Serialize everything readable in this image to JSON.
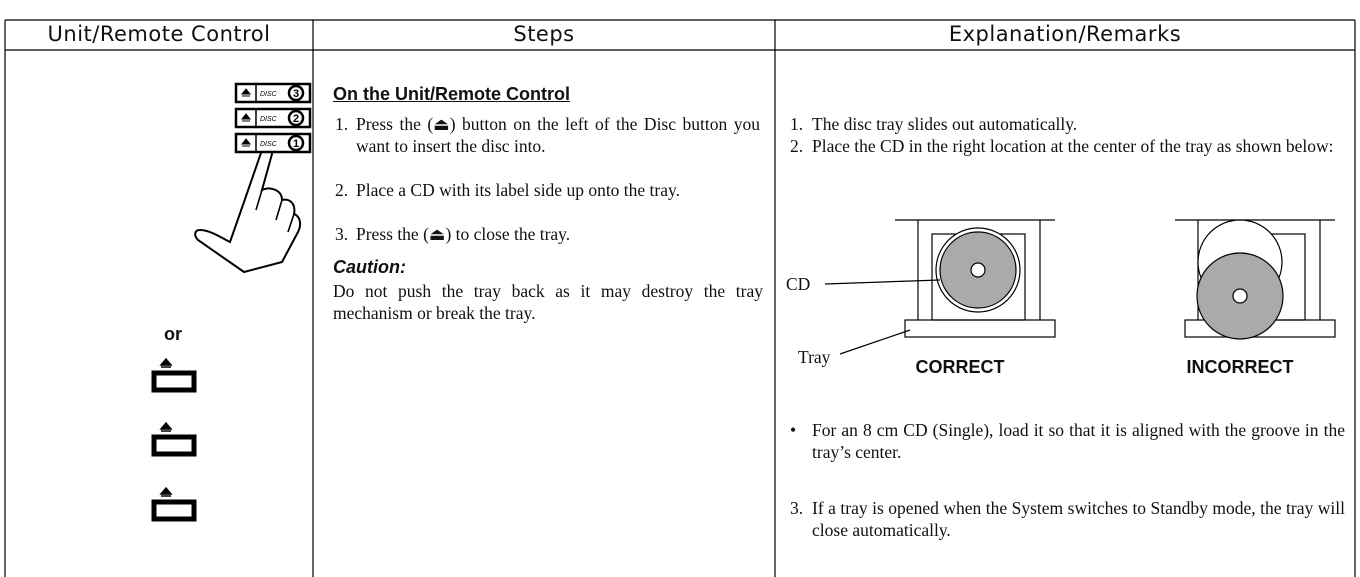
{
  "header": {
    "columns": [
      "Unit/Remote Control",
      "Steps",
      "Explanation/Remarks"
    ]
  },
  "unit_column": {
    "buttons": [
      {
        "label": "DISC",
        "number": "3"
      },
      {
        "label": "DISC",
        "number": "2"
      },
      {
        "label": "DISC",
        "number": "1"
      }
    ],
    "or_text": "or"
  },
  "steps": {
    "heading": "On the Unit/Remote Control",
    "items": [
      {
        "number": "1.",
        "text": "Press the (⏏) button on the left of the Disc button you want to insert the disc into."
      },
      {
        "number": "2.",
        "text": "Place a CD with its label side up onto the tray."
      },
      {
        "number": "3.",
        "text": "Press the (⏏) to close the tray."
      }
    ],
    "caution": {
      "heading": "Caution:",
      "text": "Do not push the tray back as it may destroy the tray mechanism or break the tray."
    }
  },
  "remarks": {
    "items": [
      {
        "number": "1.",
        "text": "The disc tray slides out automatically."
      },
      {
        "number": "2.",
        "text": "Place the CD in the right location at the center of the tray as shown below:"
      }
    ],
    "diagram": {
      "cd_label": "CD",
      "tray_label": "Tray",
      "correct": "CORRECT",
      "incorrect": "INCORRECT"
    },
    "bullet": {
      "marker": "•",
      "text": "For an 8 cm CD (Single), load it so that it is aligned with the groove in the tray’s center."
    },
    "final": {
      "number": "3.",
      "text": "If a tray is opened when the System switches to Standby mode, the tray will close automatically."
    }
  }
}
